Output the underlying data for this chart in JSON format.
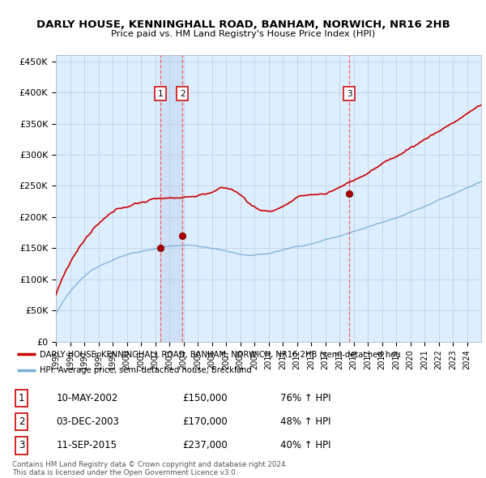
{
  "title": "DARLY HOUSE, KENNINGHALL ROAD, BANHAM, NORWICH, NR16 2HB",
  "subtitle": "Price paid vs. HM Land Registry's House Price Index (HPI)",
  "ylabel_ticks": [
    "£0",
    "£50K",
    "£100K",
    "£150K",
    "£200K",
    "£250K",
    "£300K",
    "£350K",
    "£400K",
    "£450K"
  ],
  "ytick_values": [
    0,
    50000,
    100000,
    150000,
    200000,
    250000,
    300000,
    350000,
    400000,
    450000
  ],
  "xlim_start": 1995.0,
  "xlim_end": 2025.0,
  "ylim_min": 0,
  "ylim_max": 460000,
  "sale_dates": [
    2002.36,
    2003.92,
    2015.69
  ],
  "sale_prices": [
    150000,
    170000,
    237000
  ],
  "sale_labels": [
    "1",
    "2",
    "3"
  ],
  "legend_line1": "DARLY HOUSE, KENNINGHALL ROAD, BANHAM, NORWICH, NR16 2HB (semi-detached hou",
  "legend_line2": "HPI: Average price, semi-detached house, Breckland",
  "table_data": [
    [
      "1",
      "10-MAY-2002",
      "£150,000",
      "76% ↑ HPI"
    ],
    [
      "2",
      "03-DEC-2003",
      "£170,000",
      "48% ↑ HPI"
    ],
    [
      "3",
      "11-SEP-2015",
      "£237,000",
      "40% ↑ HPI"
    ]
  ],
  "footnote": "Contains HM Land Registry data © Crown copyright and database right 2024.\nThis data is licensed under the Open Government Licence v3.0.",
  "hpi_line_color": "#7ab0d4",
  "price_line_color": "#cc0000",
  "dashed_line_color": "#ff4444",
  "chart_bg_color": "#ddeeff",
  "plot_bg_color": "#ffffff",
  "shade_color": "#ccdff5"
}
